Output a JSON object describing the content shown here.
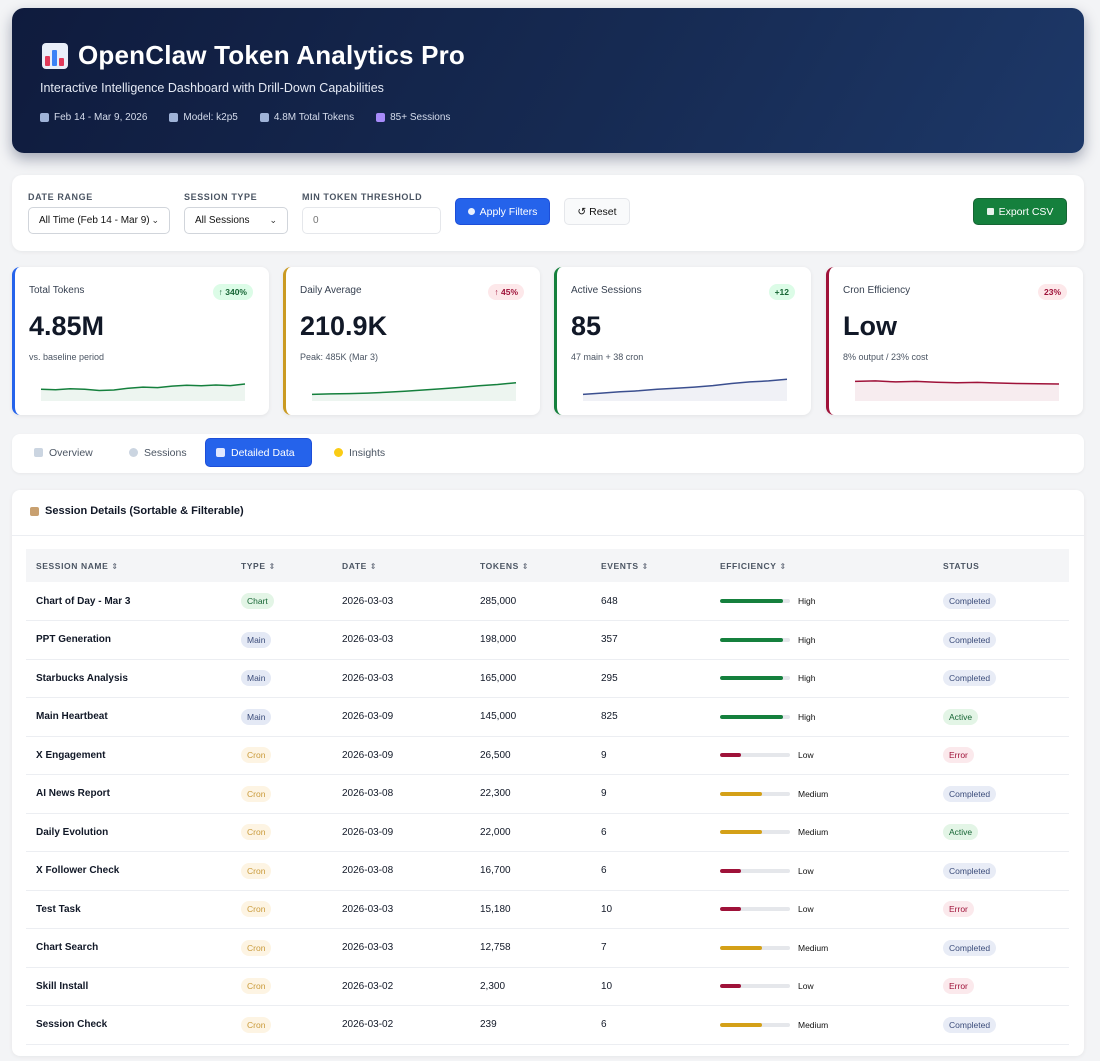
{
  "header": {
    "title": "OpenClaw Token Analytics Pro",
    "subtitle": "Interactive Intelligence Dashboard with Drill-Down Capabilities",
    "meta": [
      {
        "icon": "calendar-icon",
        "text": "Feb 14 - Mar 9, 2026"
      },
      {
        "icon": "robot-icon",
        "text": "Model: k2p5"
      },
      {
        "icon": "chart-icon",
        "text": "4.8M Total Tokens"
      },
      {
        "icon": "floppy-icon",
        "text": "85+ Sessions"
      }
    ]
  },
  "filters": {
    "date_range_label": "DATE RANGE",
    "date_range_value": "All Time (Feb 14 - Mar 9)",
    "session_type_label": "SESSION TYPE",
    "session_type_value": "All Sessions",
    "min_token_label": "MIN TOKEN THRESHOLD",
    "min_token_placeholder": "0",
    "apply_label": "Apply Filters",
    "reset_label": "↺ Reset",
    "export_label": "Export CSV"
  },
  "kpis": [
    {
      "label": "Total Tokens",
      "badge": "↑ 340%",
      "badge_tone": "green",
      "value": "4.85M",
      "note": "vs. baseline period",
      "color": "#2563eb",
      "line_color": "#15803d",
      "trend": [
        0.3,
        0.28,
        0.32,
        0.3,
        0.25,
        0.27,
        0.34,
        0.38,
        0.36,
        0.42,
        0.45,
        0.43,
        0.46,
        0.44,
        0.5
      ]
    },
    {
      "label": "Daily Average",
      "badge": "↑ 45%",
      "badge_tone": "red",
      "value": "210.9K",
      "note": "Peak: 485K (Mar 3)",
      "color": "#ca9a22",
      "line_color": "#15803d",
      "trend": [
        0.1,
        0.12,
        0.13,
        0.15,
        0.18,
        0.22,
        0.27,
        0.32,
        0.37,
        0.43,
        0.48,
        0.55
      ]
    },
    {
      "label": "Active Sessions",
      "badge": "+12",
      "badge_tone": "green",
      "value": "85",
      "note": "47 main + 38 cron",
      "color": "#15803d",
      "line_color": "#3b4f8f",
      "trend": [
        0.1,
        0.15,
        0.2,
        0.24,
        0.3,
        0.34,
        0.38,
        0.44,
        0.52,
        0.58,
        0.62,
        0.68
      ]
    },
    {
      "label": "Cron Efficiency",
      "badge": "23%",
      "badge_tone": "red",
      "value": "Low",
      "note": "8% output / 23% cost",
      "color": "#9f1239",
      "line_color": "#9f1239",
      "trend": [
        0.6,
        0.62,
        0.58,
        0.6,
        0.57,
        0.55,
        0.56,
        0.54,
        0.52,
        0.51,
        0.5
      ]
    }
  ],
  "tabs": [
    {
      "label": "Overview",
      "icon": "chart-icon",
      "active": false
    },
    {
      "label": "Sessions",
      "icon": "chat-icon",
      "active": false
    },
    {
      "label": "Detailed Data",
      "icon": "clipboard-icon",
      "active": true
    },
    {
      "label": "Insights",
      "icon": "bulb-icon",
      "active": false
    }
  ],
  "table": {
    "title": "Session Details (Sortable & Filterable)",
    "columns": [
      "SESSION NAME",
      "TYPE",
      "DATE",
      "TOKENS",
      "EVENTS",
      "EFFICIENCY",
      "STATUS"
    ],
    "rows": [
      {
        "name": "Chart of Day - Mar 3",
        "type": "Chart",
        "date": "2026-03-03",
        "tokens": "285,000",
        "events": "648",
        "efficiency": "High",
        "status": "Completed"
      },
      {
        "name": "PPT Generation",
        "type": "Main",
        "date": "2026-03-03",
        "tokens": "198,000",
        "events": "357",
        "efficiency": "High",
        "status": "Completed"
      },
      {
        "name": "Starbucks Analysis",
        "type": "Main",
        "date": "2026-03-03",
        "tokens": "165,000",
        "events": "295",
        "efficiency": "High",
        "status": "Completed"
      },
      {
        "name": "Main Heartbeat",
        "type": "Main",
        "date": "2026-03-09",
        "tokens": "145,000",
        "events": "825",
        "efficiency": "High",
        "status": "Active"
      },
      {
        "name": "X Engagement",
        "type": "Cron",
        "date": "2026-03-09",
        "tokens": "26,500",
        "events": "9",
        "efficiency": "Low",
        "status": "Error"
      },
      {
        "name": "AI News Report",
        "type": "Cron",
        "date": "2026-03-08",
        "tokens": "22,300",
        "events": "9",
        "efficiency": "Medium",
        "status": "Completed"
      },
      {
        "name": "Daily Evolution",
        "type": "Cron",
        "date": "2026-03-09",
        "tokens": "22,000",
        "events": "6",
        "efficiency": "Medium",
        "status": "Active"
      },
      {
        "name": "X Follower Check",
        "type": "Cron",
        "date": "2026-03-08",
        "tokens": "16,700",
        "events": "6",
        "efficiency": "Low",
        "status": "Completed"
      },
      {
        "name": "Test Task",
        "type": "Cron",
        "date": "2026-03-03",
        "tokens": "15,180",
        "events": "10",
        "efficiency": "Low",
        "status": "Error"
      },
      {
        "name": "Chart Search",
        "type": "Cron",
        "date": "2026-03-03",
        "tokens": "12,758",
        "events": "7",
        "efficiency": "Medium",
        "status": "Completed"
      },
      {
        "name": "Skill Install",
        "type": "Cron",
        "date": "2026-03-02",
        "tokens": "2,300",
        "events": "10",
        "efficiency": "Low",
        "status": "Error"
      },
      {
        "name": "Session Check",
        "type": "Cron",
        "date": "2026-03-02",
        "tokens": "239",
        "events": "6",
        "efficiency": "Medium",
        "status": "Completed"
      }
    ]
  },
  "efficiency_levels": {
    "High": {
      "fraction": 0.9,
      "color": "#15803d"
    },
    "Medium": {
      "fraction": 0.6,
      "color": "#d4a017"
    },
    "Low": {
      "fraction": 0.3,
      "color": "#9f1239"
    }
  }
}
